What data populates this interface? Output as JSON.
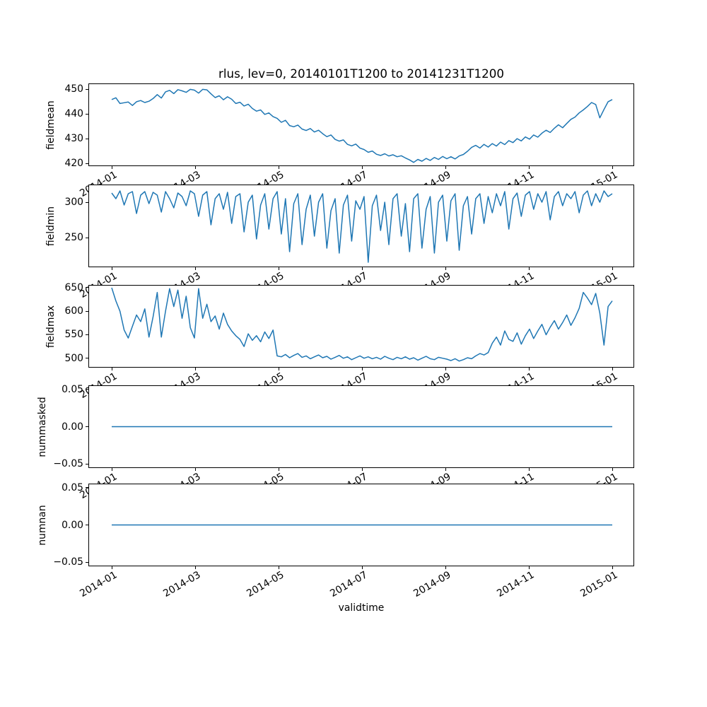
{
  "chart_data": {
    "type": "line",
    "title": "rlus, lev=0, 20140101T1200 to 20141231T1200",
    "xlabel": "validtime",
    "line_color": "#1f77b4",
    "x_tick_labels": [
      "2014-01",
      "2014-03",
      "2014-05",
      "2014-07",
      "2014-09",
      "2014-11",
      "2015-01"
    ],
    "x_span": "2014-01-01 to 2014-12-31, values estimated at ~3-day intervals",
    "subplots": [
      {
        "ylabel": "fieldmean",
        "ytick_values": [
          450,
          440,
          430,
          420
        ],
        "ytick_labels": [
          "450",
          "440",
          "430",
          "420"
        ],
        "ylim": [
          418.9,
          452.3
        ],
        "values": [
          445.8,
          446.5,
          444.2,
          444.5,
          444.8,
          443.4,
          444.9,
          445.4,
          444.6,
          445.1,
          446.2,
          447.8,
          446.4,
          448.9,
          449.5,
          448.2,
          449.8,
          449.3,
          448.7,
          449.9,
          449.6,
          448.4,
          449.9,
          449.7,
          448.1,
          446.6,
          447.3,
          445.7,
          446.9,
          445.9,
          444.2,
          444.7,
          443.2,
          443.9,
          442.2,
          441.1,
          441.6,
          439.8,
          440.4,
          438.9,
          438.2,
          436.6,
          437.4,
          435.3,
          434.8,
          435.5,
          433.9,
          433.3,
          434.1,
          432.7,
          433.4,
          432.0,
          430.8,
          431.5,
          429.7,
          429.0,
          429.5,
          427.7,
          427.1,
          427.8,
          426.2,
          425.6,
          424.5,
          425.0,
          423.7,
          423.2,
          423.9,
          423.0,
          423.5,
          422.7,
          423.1,
          422.2,
          421.4,
          420.4,
          421.6,
          420.9,
          422.0,
          421.2,
          422.4,
          421.6,
          422.8,
          421.9,
          422.7,
          421.8,
          423.0,
          423.6,
          424.9,
          426.5,
          427.3,
          426.2,
          427.7,
          426.6,
          428.0,
          427.0,
          428.6,
          427.6,
          429.2,
          428.4,
          430.0,
          429.1,
          430.7,
          429.8,
          431.5,
          430.6,
          432.2,
          433.4,
          432.5,
          434.2,
          435.6,
          434.4,
          436.1,
          437.8,
          438.7,
          440.4,
          441.6,
          443.0,
          444.6,
          443.8,
          438.4,
          441.8,
          444.9,
          445.8
        ]
      },
      {
        "ylabel": "fieldmin",
        "ytick_values": [
          300,
          250
        ],
        "ytick_labels": [
          "300",
          "250"
        ],
        "ylim": [
          208,
          325
        ],
        "values": [
          313,
          305,
          316,
          296,
          312,
          315,
          284,
          310,
          315,
          298,
          314,
          310,
          286,
          315,
          305,
          292,
          313,
          308,
          295,
          316,
          312,
          280,
          310,
          315,
          268,
          305,
          312,
          290,
          314,
          270,
          308,
          312,
          258,
          300,
          310,
          248,
          296,
          312,
          262,
          305,
          315,
          255,
          305,
          230,
          298,
          312,
          240,
          290,
          310,
          252,
          300,
          312,
          235,
          288,
          305,
          228,
          296,
          310,
          245,
          302,
          290,
          308,
          215,
          295,
          310,
          260,
          300,
          240,
          305,
          312,
          252,
          298,
          230,
          305,
          312,
          235,
          290,
          308,
          228,
          300,
          310,
          245,
          302,
          312,
          232,
          295,
          308,
          255,
          305,
          312,
          270,
          308,
          285,
          312,
          295,
          315,
          262,
          305,
          313,
          280,
          310,
          315,
          290,
          312,
          300,
          315,
          275,
          308,
          315,
          295,
          312,
          305,
          315,
          285,
          310,
          316,
          295,
          312,
          300,
          316,
          308,
          312
        ]
      },
      {
        "ylabel": "fieldmax",
        "ytick_values": [
          650,
          600,
          550,
          500
        ],
        "ytick_labels": [
          "650",
          "600",
          "550",
          "500"
        ],
        "ylim": [
          480,
          656
        ],
        "values": [
          650,
          622,
          600,
          560,
          543,
          568,
          592,
          578,
          605,
          545,
          588,
          640,
          545,
          600,
          648,
          610,
          645,
          585,
          632,
          565,
          543,
          648,
          585,
          615,
          578,
          590,
          562,
          596,
          572,
          558,
          548,
          540,
          525,
          552,
          538,
          548,
          535,
          556,
          542,
          560,
          505,
          503,
          508,
          501,
          506,
          510,
          502,
          505,
          499,
          503,
          507,
          501,
          504,
          498,
          502,
          506,
          500,
          503,
          497,
          501,
          505,
          500,
          503,
          499,
          502,
          498,
          504,
          500,
          497,
          502,
          499,
          503,
          498,
          501,
          496,
          500,
          504,
          499,
          497,
          502,
          500,
          498,
          495,
          499,
          494,
          497,
          501,
          499,
          505,
          510,
          507,
          512,
          532,
          545,
          528,
          558,
          540,
          536,
          554,
          530,
          548,
          562,
          542,
          558,
          572,
          550,
          566,
          580,
          562,
          576,
          592,
          570,
          586,
          606,
          640,
          628,
          614,
          638,
          596,
          528,
          610,
          622
        ]
      },
      {
        "ylabel": "nummasked",
        "ytick_values": [
          0.05,
          0,
          -0.05
        ],
        "ytick_labels": [
          "0.05",
          "0.00",
          "−0.05"
        ],
        "ylim": [
          -0.0557,
          0.0557
        ],
        "constant": 0,
        "n_points": 122
      },
      {
        "ylabel": "numnan",
        "ytick_values": [
          0.05,
          0,
          -0.05
        ],
        "ytick_labels": [
          "0.05",
          "0.00",
          "−0.05"
        ],
        "ylim": [
          -0.0557,
          0.0557
        ],
        "constant": 0,
        "n_points": 122
      }
    ]
  }
}
